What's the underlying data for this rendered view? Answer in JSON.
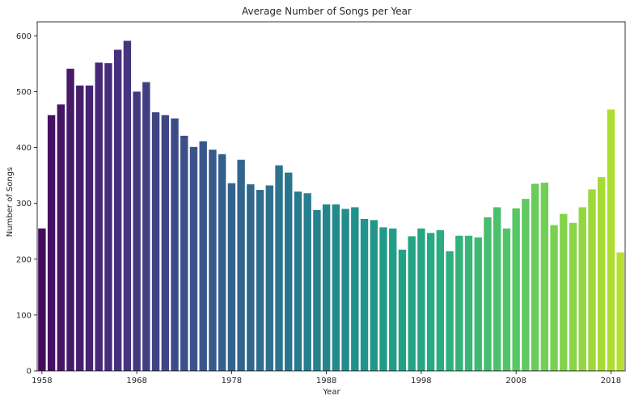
{
  "chart_data": {
    "type": "bar",
    "title": "Average Number of Songs per Year",
    "xlabel": "Year",
    "ylabel": "Number of Songs",
    "ylim": [
      0,
      625
    ],
    "yticks": [
      0,
      100,
      200,
      300,
      400,
      500,
      600
    ],
    "xtick_labels": [
      "1958",
      "1968",
      "1978",
      "1988",
      "1998",
      "2008",
      "2018"
    ],
    "palette": "viridis",
    "grid": false,
    "legend": "none",
    "categories": [
      "1958",
      "1959",
      "1960",
      "1961",
      "1962",
      "1963",
      "1964",
      "1965",
      "1966",
      "1967",
      "1968",
      "1969",
      "1970",
      "1971",
      "1972",
      "1973",
      "1974",
      "1975",
      "1976",
      "1977",
      "1978",
      "1979",
      "1980",
      "1981",
      "1982",
      "1983",
      "1984",
      "1985",
      "1986",
      "1987",
      "1988",
      "1989",
      "1990",
      "1991",
      "1992",
      "1993",
      "1994",
      "1995",
      "1996",
      "1997",
      "1998",
      "1999",
      "2000",
      "2001",
      "2002",
      "2003",
      "2004",
      "2005",
      "2006",
      "2007",
      "2008",
      "2009",
      "2010",
      "2011",
      "2012",
      "2013",
      "2014",
      "2015",
      "2016",
      "2017",
      "2018",
      "2019"
    ],
    "values": [
      255,
      458,
      477,
      541,
      511,
      511,
      552,
      551,
      575,
      591,
      500,
      517,
      463,
      458,
      452,
      421,
      401,
      411,
      396,
      388,
      336,
      378,
      334,
      324,
      332,
      368,
      355,
      321,
      318,
      288,
      298,
      298,
      290,
      293,
      272,
      270,
      257,
      255,
      217,
      241,
      255,
      247,
      252,
      214,
      242,
      242,
      239,
      275,
      293,
      255,
      291,
      308,
      335,
      337,
      261,
      281,
      265,
      293,
      325,
      347,
      468,
      212
    ]
  }
}
